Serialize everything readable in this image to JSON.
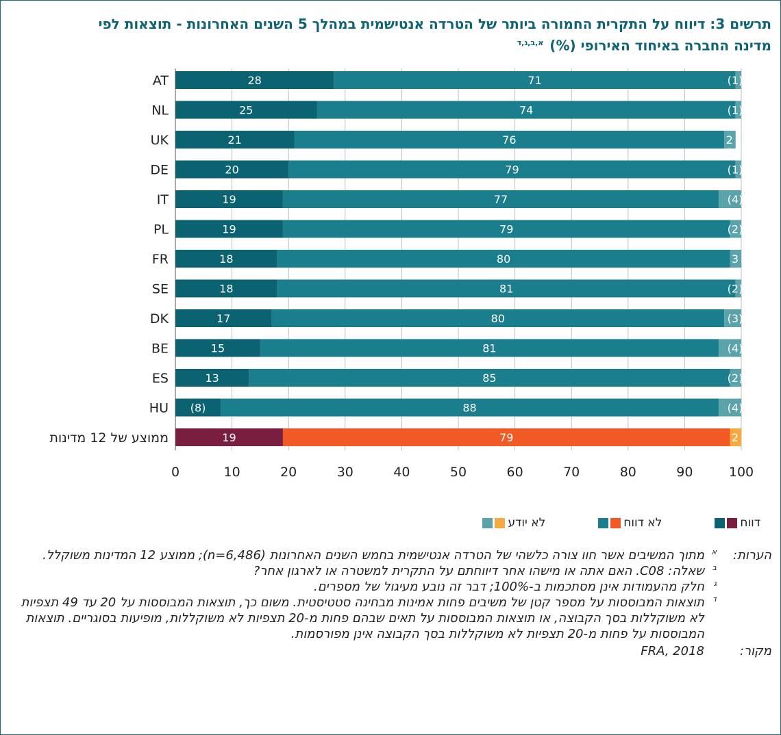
{
  "title": {
    "line1": "תרשים 3: דיווח על התקרית החמורה ביותר של הטרדה אנטישמית במהלך 5 השנים האחרונות - תוצאות לפי",
    "line2": "מדינה החברה באיחוד האירופי (%)",
    "sup": "א,ב,ג,ד"
  },
  "colors": {
    "reported": "#0b6270",
    "not_reported": "#1b7e8c",
    "dont_know": "#5aa3ab",
    "avg_reported": "#7a1e3f",
    "avg_not_reported": "#f15a24",
    "avg_dont_know": "#f7a941",
    "gridline": "#bdbdbd"
  },
  "chart_data": {
    "type": "bar",
    "orientation": "horizontal",
    "stacked": true,
    "categories": [
      "AT",
      "NL",
      "UK",
      "DE",
      "IT",
      "PL",
      "FR",
      "SE",
      "DK",
      "BE",
      "ES",
      "HU",
      "ממוצע של 12 מדינות"
    ],
    "series": [
      {
        "name": "דווח",
        "values": [
          28,
          25,
          21,
          20,
          19,
          19,
          18,
          18,
          17,
          15,
          13,
          8,
          19
        ],
        "labels": [
          "28",
          "25",
          "21",
          "20",
          "19",
          "19",
          "18",
          "18",
          "17",
          "15",
          "13",
          "(8)",
          "19"
        ]
      },
      {
        "name": "לא דווח",
        "values": [
          71,
          74,
          76,
          79,
          77,
          79,
          80,
          81,
          80,
          81,
          85,
          88,
          79
        ],
        "labels": [
          "71",
          "74",
          "76",
          "79",
          "77",
          "79",
          "80",
          "81",
          "80",
          "81",
          "85",
          "88",
          "79"
        ]
      },
      {
        "name": "לא יודע",
        "values": [
          1,
          1,
          2,
          1,
          4,
          2,
          3,
          2,
          3,
          4,
          2,
          4,
          2
        ],
        "labels": [
          "(1)",
          "(1)",
          "2",
          "(1)",
          "(4)",
          "(2)",
          "3",
          "(2)",
          "(3)",
          "(4)",
          "(2)",
          "(4)",
          "2"
        ]
      }
    ],
    "xlim": [
      0,
      100
    ],
    "xticks": [
      0,
      10,
      20,
      30,
      40,
      50,
      60,
      70,
      80,
      90,
      100
    ],
    "grid": true,
    "legend_position": "bottom"
  },
  "legend": [
    {
      "label": "דווח",
      "colors": [
        "#7a1e3f",
        "#0b6270"
      ]
    },
    {
      "label": "לא דווח",
      "colors": [
        "#f15a24",
        "#1b7e8c"
      ]
    },
    {
      "label": "לא יודע",
      "colors": [
        "#f7a941",
        "#5aa3ab"
      ]
    }
  ],
  "notes": {
    "heading": "הערות:",
    "items": [
      {
        "mark": "א",
        "text": "מתוך המשיבים אשר חוו צורה כלשהי של הטרדה אנטישמית בחמש השנים האחרונות (n=6,486); ממוצע 12 המדינות משוקלל."
      },
      {
        "mark": "ב",
        "text": "שאלה: C08. האם אתה או מישהו אחר דיווחתם על התקרית למשטרה או לארגון אחר?"
      },
      {
        "mark": "ג",
        "text": "חלק מהעמודות אינן מסתכמות ב-100%; דבר זה נובע מעיגול של מספרים."
      },
      {
        "mark": "ד",
        "text": "תוצאות המבוססות על מספר קטן של משיבים פחות אמינות מבחינה סטטיסטית. משום כך, תוצאות המבוססות על 20 עד 49 תצפיות לא משוקללות בסך הקבוצה, או תוצאות המבוססות על תאים שבהם פחות מ-20 תצפיות לא משוקללות, מופיעות בסוגריים. תוצאות המבוססות על פחות מ-20 תצפיות לא משוקללות בסך הקבוצה אינן מפורסמות."
      }
    ],
    "source_label": "מקור:",
    "source": "FRA, 2018"
  }
}
